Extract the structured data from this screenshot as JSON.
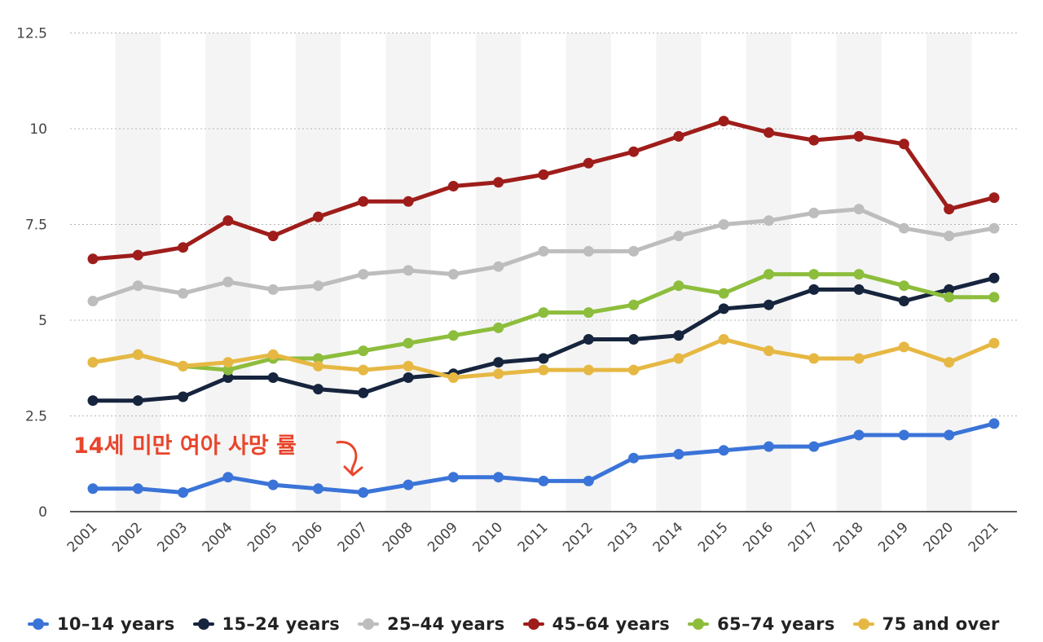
{
  "chart_data": {
    "type": "line",
    "title": "",
    "xlabel": "",
    "ylabel": "",
    "categories": [
      "2001",
      "2002",
      "2003",
      "2004",
      "2005",
      "2006",
      "2007",
      "2008",
      "2009",
      "2010",
      "2011",
      "2012",
      "2013",
      "2014",
      "2015",
      "2016",
      "2017",
      "2018",
      "2019",
      "2020",
      "2021"
    ],
    "y_ticks": [
      "0",
      "2.5",
      "5",
      "7.5",
      "10",
      "12.5"
    ],
    "ylim": [
      0,
      12.5
    ],
    "grid": true,
    "legend_position": "bottom",
    "series": [
      {
        "name": "10-14 years",
        "color": "#3b74d8",
        "values": [
          0.6,
          0.6,
          0.5,
          0.9,
          0.7,
          0.6,
          0.5,
          0.7,
          0.9,
          0.9,
          0.8,
          0.8,
          1.4,
          1.5,
          1.6,
          1.7,
          1.7,
          2.0,
          2.0,
          2.0,
          2.3
        ]
      },
      {
        "name": "15-24 years",
        "color": "#16243d",
        "values": [
          2.9,
          2.9,
          3.0,
          3.5,
          3.5,
          3.2,
          3.1,
          3.5,
          3.6,
          3.9,
          4.0,
          4.5,
          4.5,
          4.6,
          5.3,
          5.4,
          5.8,
          5.8,
          5.5,
          5.8,
          6.1
        ]
      },
      {
        "name": "25-44 years",
        "color": "#bdbdbd",
        "values": [
          5.5,
          5.9,
          5.7,
          6.0,
          5.8,
          5.9,
          6.2,
          6.3,
          6.2,
          6.4,
          6.8,
          6.8,
          6.8,
          7.2,
          7.5,
          7.6,
          7.8,
          7.9,
          7.4,
          7.2,
          7.4
        ]
      },
      {
        "name": "45-64 years",
        "color": "#9e1d1a",
        "values": [
          6.6,
          6.7,
          6.9,
          7.6,
          7.2,
          7.7,
          8.1,
          8.1,
          8.5,
          8.6,
          8.8,
          9.1,
          9.4,
          9.8,
          10.2,
          9.9,
          9.7,
          9.8,
          9.6,
          7.9,
          8.2
        ]
      },
      {
        "name": "65-74 years",
        "color": "#8dbd3c",
        "values": [
          3.9,
          4.1,
          3.8,
          3.7,
          4.0,
          4.0,
          4.2,
          4.4,
          4.6,
          4.8,
          5.2,
          5.2,
          5.4,
          5.9,
          5.7,
          6.2,
          6.2,
          6.2,
          5.9,
          5.6,
          5.6
        ]
      },
      {
        "name": "75 and over",
        "color": "#e6b843",
        "values": [
          3.9,
          4.1,
          3.8,
          3.9,
          4.1,
          3.8,
          3.7,
          3.8,
          3.5,
          3.6,
          3.7,
          3.7,
          3.7,
          4.0,
          4.5,
          4.2,
          4.0,
          4.0,
          4.3,
          3.9,
          4.4
        ]
      }
    ],
    "annotations": [
      {
        "text": "14세 미만 여아 사망 률",
        "color": "#e8452c",
        "points_to_category": "2007",
        "points_to_series": "10-14 years"
      }
    ]
  },
  "legend": {
    "items": [
      {
        "label": "10–14 years",
        "color": "#3b74d8"
      },
      {
        "label": "15–24 years",
        "color": "#16243d"
      },
      {
        "label": "25–44 years",
        "color": "#bdbdbd"
      },
      {
        "label": "45–64 years",
        "color": "#9e1d1a"
      },
      {
        "label": "65–74 years",
        "color": "#8dbd3c"
      },
      {
        "label": "75 and over",
        "color": "#e6b843"
      }
    ]
  }
}
